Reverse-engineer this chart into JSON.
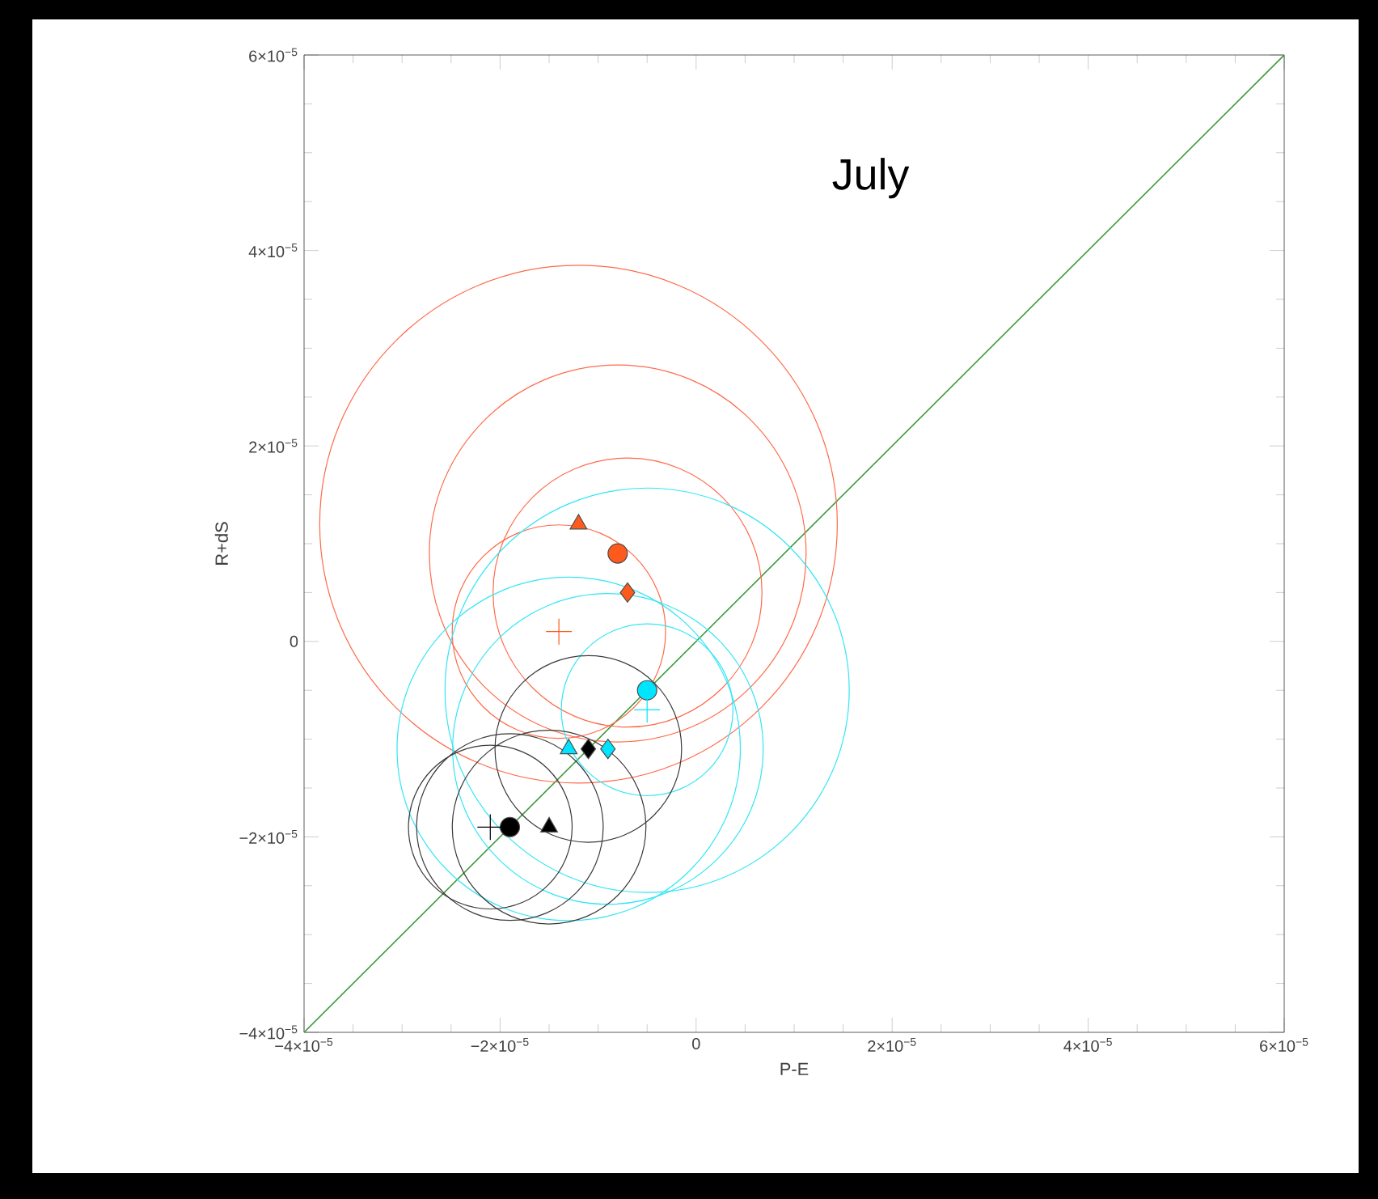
{
  "chart_data": {
    "type": "scatter",
    "title": "July",
    "xlabel": "P-E",
    "ylabel": "R+dS",
    "grid": false,
    "xlim": [
      -4e-05,
      6e-05
    ],
    "ylim": [
      -4e-05,
      6e-05
    ],
    "xticks": [
      {
        "value": -4e-05,
        "label": "−4×10$^{−5}$"
      },
      {
        "value": -2e-05,
        "label": "−2×10$^{−5}$"
      },
      0,
      {
        "value": 2e-05,
        "label": "2×10$^{−5}$"
      },
      {
        "value": 4e-05,
        "label": "4×10$^{−5}$"
      },
      {
        "value": 6e-05,
        "label": "6×10$^{−5}$"
      }
    ],
    "yticks": [
      {
        "value": -4e-05,
        "label": "−4×10$^{−5}$"
      },
      {
        "value": -2e-05,
        "label": "−2×10$^{−5}$"
      },
      0,
      {
        "value": 2e-05,
        "label": "2×10$^{−5}$"
      },
      {
        "value": 4e-05,
        "label": "4×10$^{−5}$"
      },
      {
        "value": 6e-05,
        "label": "6×10$^{−5}$"
      }
    ],
    "series": [
      {
        "type": "line",
        "color": "#3c9a3c",
        "marker": "none",
        "x": [
          -4e-05,
          6e-05
        ],
        "values": [
          -4e-05,
          6e-05
        ]
      },
      {
        "type": "bubble",
        "color": "#ff6a4a",
        "x": [
          -1.2e-05,
          -8e-06,
          -7e-06,
          -1.4e-05
        ],
        "values": [
          1.2e-05,
          9e-06,
          5e-06,
          1e-06
        ],
        "sizes": [
          1,
          0.53,
          0.27,
          0.17
        ]
      },
      {
        "type": "bubble",
        "color": "#33e6f5",
        "x": [
          -5e-06,
          -1.3e-05,
          -9e-06,
          -5e-06
        ],
        "values": [
          -5e-06,
          -1.1e-05,
          -1.1e-05,
          -7e-06
        ],
        "sizes": [
          0.61,
          0.44,
          0.36,
          0.11
        ]
      },
      {
        "type": "bubble",
        "color": "#3a3a3a",
        "x": [
          -1.1e-05,
          -1.9e-05,
          -1.5e-05,
          -2.1e-05
        ],
        "values": [
          -1.1e-05,
          -1.9e-05,
          -1.9e-05,
          -1.9e-05
        ],
        "sizes": [
          0.13,
          0.13,
          0.14,
          0.1
        ]
      },
      {
        "marker": "triangle",
        "color": "#ff5a1e",
        "x": [
          -1.2e-05
        ],
        "values": [
          1.2e-05
        ]
      },
      {
        "marker": "circle",
        "color": "#ff5a1e",
        "x": [
          -8e-06
        ],
        "values": [
          9e-06
        ]
      },
      {
        "marker": "diamond",
        "color": "#ff5a1e",
        "x": [
          -7e-06
        ],
        "values": [
          5e-06
        ]
      },
      {
        "marker": "cross",
        "color": "#ff5a1e",
        "x": [
          -1.4e-05
        ],
        "values": [
          1e-06
        ]
      },
      {
        "marker": "circle",
        "color": "#00e5ff",
        "x": [
          -5e-06
        ],
        "values": [
          -5e-06
        ]
      },
      {
        "marker": "triangle",
        "color": "#00e5ff",
        "x": [
          -1.3e-05
        ],
        "values": [
          -1.1e-05
        ]
      },
      {
        "marker": "diamond",
        "color": "#00e5ff",
        "x": [
          -9e-06
        ],
        "values": [
          -1.1e-05
        ]
      },
      {
        "marker": "cross",
        "color": "#00e5ff",
        "x": [
          -5e-06
        ],
        "values": [
          -7e-06
        ]
      },
      {
        "marker": "diamond",
        "color": "#000000",
        "x": [
          -1.1e-05
        ],
        "values": [
          -1.1e-05
        ]
      },
      {
        "marker": "circle",
        "color": "#000000",
        "x": [
          -1.9e-05
        ],
        "values": [
          -1.9e-05
        ]
      },
      {
        "marker": "triangle",
        "color": "#000000",
        "x": [
          -1.5e-05
        ],
        "values": [
          -1.9e-05
        ]
      },
      {
        "marker": "cross",
        "color": "#000000",
        "x": [
          -2.1e-05
        ],
        "values": [
          -1.9e-05
        ]
      }
    ]
  }
}
